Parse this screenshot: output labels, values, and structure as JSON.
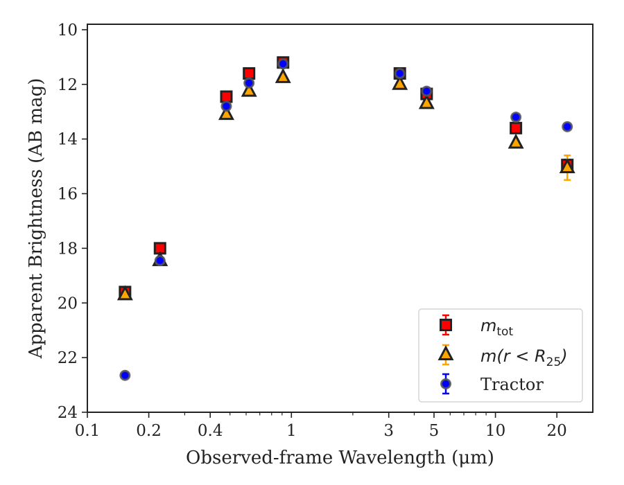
{
  "chart_data": {
    "type": "scatter",
    "xlabel": "Observed-frame Wavelength (μm)",
    "ylabel": "Apparent Brightness (AB mag)",
    "xscale": "log",
    "xlim": [
      0.1,
      30
    ],
    "ylim": [
      24,
      9.8
    ],
    "y_inverted": true,
    "x_ticks": [
      0.1,
      0.2,
      0.4,
      1,
      3,
      5,
      10,
      20
    ],
    "x_tick_labels": [
      "0.1",
      "0.2",
      "0.4",
      "1",
      "3",
      "5",
      "10",
      "20"
    ],
    "y_ticks": [
      10,
      12,
      14,
      16,
      18,
      20,
      22,
      24
    ],
    "y_tick_labels": [
      "10",
      "12",
      "14",
      "16",
      "18",
      "20",
      "22",
      "24"
    ],
    "grid": false,
    "legend_position": "lower-right",
    "series": [
      {
        "legend_label": "m_tot",
        "marker": "square",
        "color": "#ff0000",
        "edge_color": "#222222",
        "error_color": "#ff0000",
        "points": [
          {
            "x": 0.153,
            "y": 19.6,
            "yerr": 0.1
          },
          {
            "x": 0.227,
            "y": 18.0,
            "yerr": 0.1
          },
          {
            "x": 0.48,
            "y": 12.45,
            "yerr": 0.05
          },
          {
            "x": 0.62,
            "y": 11.6,
            "yerr": 0.05
          },
          {
            "x": 0.91,
            "y": 11.2,
            "yerr": 0.05
          },
          {
            "x": 3.4,
            "y": 11.6,
            "yerr": 0.05
          },
          {
            "x": 4.6,
            "y": 12.35,
            "yerr": 0.05
          },
          {
            "x": 12.6,
            "y": 13.6,
            "yerr": 0.05
          },
          {
            "x": 22.5,
            "y": 14.95,
            "yerr": 0.2
          }
        ]
      },
      {
        "legend_label": "m(r < R_25)",
        "marker": "triangle",
        "color": "#ffa500",
        "edge_color": "#222222",
        "error_color": "#ffa500",
        "points": [
          {
            "x": 0.153,
            "y": 19.7,
            "yerr": 0.1
          },
          {
            "x": 0.227,
            "y": 18.45,
            "yerr": 0.1
          },
          {
            "x": 0.48,
            "y": 13.1,
            "yerr": 0.05
          },
          {
            "x": 0.62,
            "y": 12.25,
            "yerr": 0.05
          },
          {
            "x": 0.91,
            "y": 11.75,
            "yerr": 0.05
          },
          {
            "x": 3.4,
            "y": 12.0,
            "yerr": 0.05
          },
          {
            "x": 4.6,
            "y": 12.7,
            "yerr": 0.05
          },
          {
            "x": 12.6,
            "y": 14.15,
            "yerr": 0.05
          },
          {
            "x": 22.5,
            "y": 15.05,
            "yerr": 0.45
          }
        ]
      },
      {
        "legend_label": "Tractor",
        "marker": "circle",
        "color": "#0000ff",
        "edge_color": "#555555",
        "error_color": "#0000ff",
        "points": [
          {
            "x": 0.153,
            "y": 22.65,
            "yerr": 0.05
          },
          {
            "x": 0.227,
            "y": 18.45,
            "yerr": 0.05
          },
          {
            "x": 0.48,
            "y": 12.8,
            "yerr": 0.05
          },
          {
            "x": 0.62,
            "y": 11.95,
            "yerr": 0.05
          },
          {
            "x": 0.91,
            "y": 11.25,
            "yerr": 0.05
          },
          {
            "x": 3.4,
            "y": 11.6,
            "yerr": 0.05
          },
          {
            "x": 4.6,
            "y": 12.25,
            "yerr": 0.05
          },
          {
            "x": 12.6,
            "y": 13.2,
            "yerr": 0.05
          },
          {
            "x": 22.5,
            "y": 13.55,
            "yerr": 0.05
          }
        ]
      }
    ]
  }
}
